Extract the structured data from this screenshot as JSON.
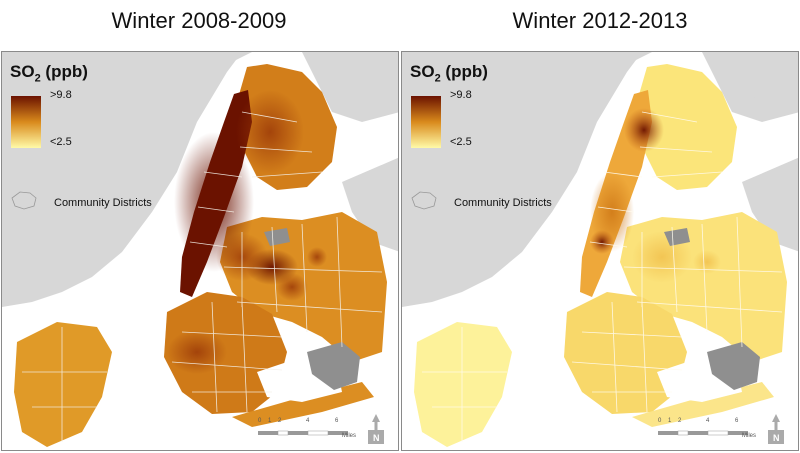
{
  "panels": [
    {
      "title": "Winter 2008-2009",
      "legend": {
        "pollutant": "SO",
        "subscript": "2",
        "unit": " (ppb)",
        "high": ">9.8",
        "low": "<2.5"
      },
      "boundary_label": "Community Districts",
      "scale": {
        "ticks": [
          "0",
          "1",
          "2",
          "4",
          "6"
        ],
        "unit": "Miles"
      },
      "north_label": "N",
      "intensity": "high"
    },
    {
      "title": "Winter 2012-2013",
      "legend": {
        "pollutant": "SO",
        "subscript": "2",
        "unit": " (ppb)",
        "high": ">9.8",
        "low": "<2.5"
      },
      "boundary_label": "Community Districts",
      "scale": {
        "ticks": [
          "0",
          "1",
          "2",
          "4",
          "6"
        ],
        "unit": "Miles"
      },
      "north_label": "N",
      "intensity": "low"
    }
  ],
  "colors": {
    "ramp_high": "#6b1200",
    "ramp_mid": "#d98a1c",
    "ramp_low": "#fffaa8",
    "land_gray": "#d7d7d7",
    "water": "#ffffff",
    "airport": "#8f8f8f"
  }
}
